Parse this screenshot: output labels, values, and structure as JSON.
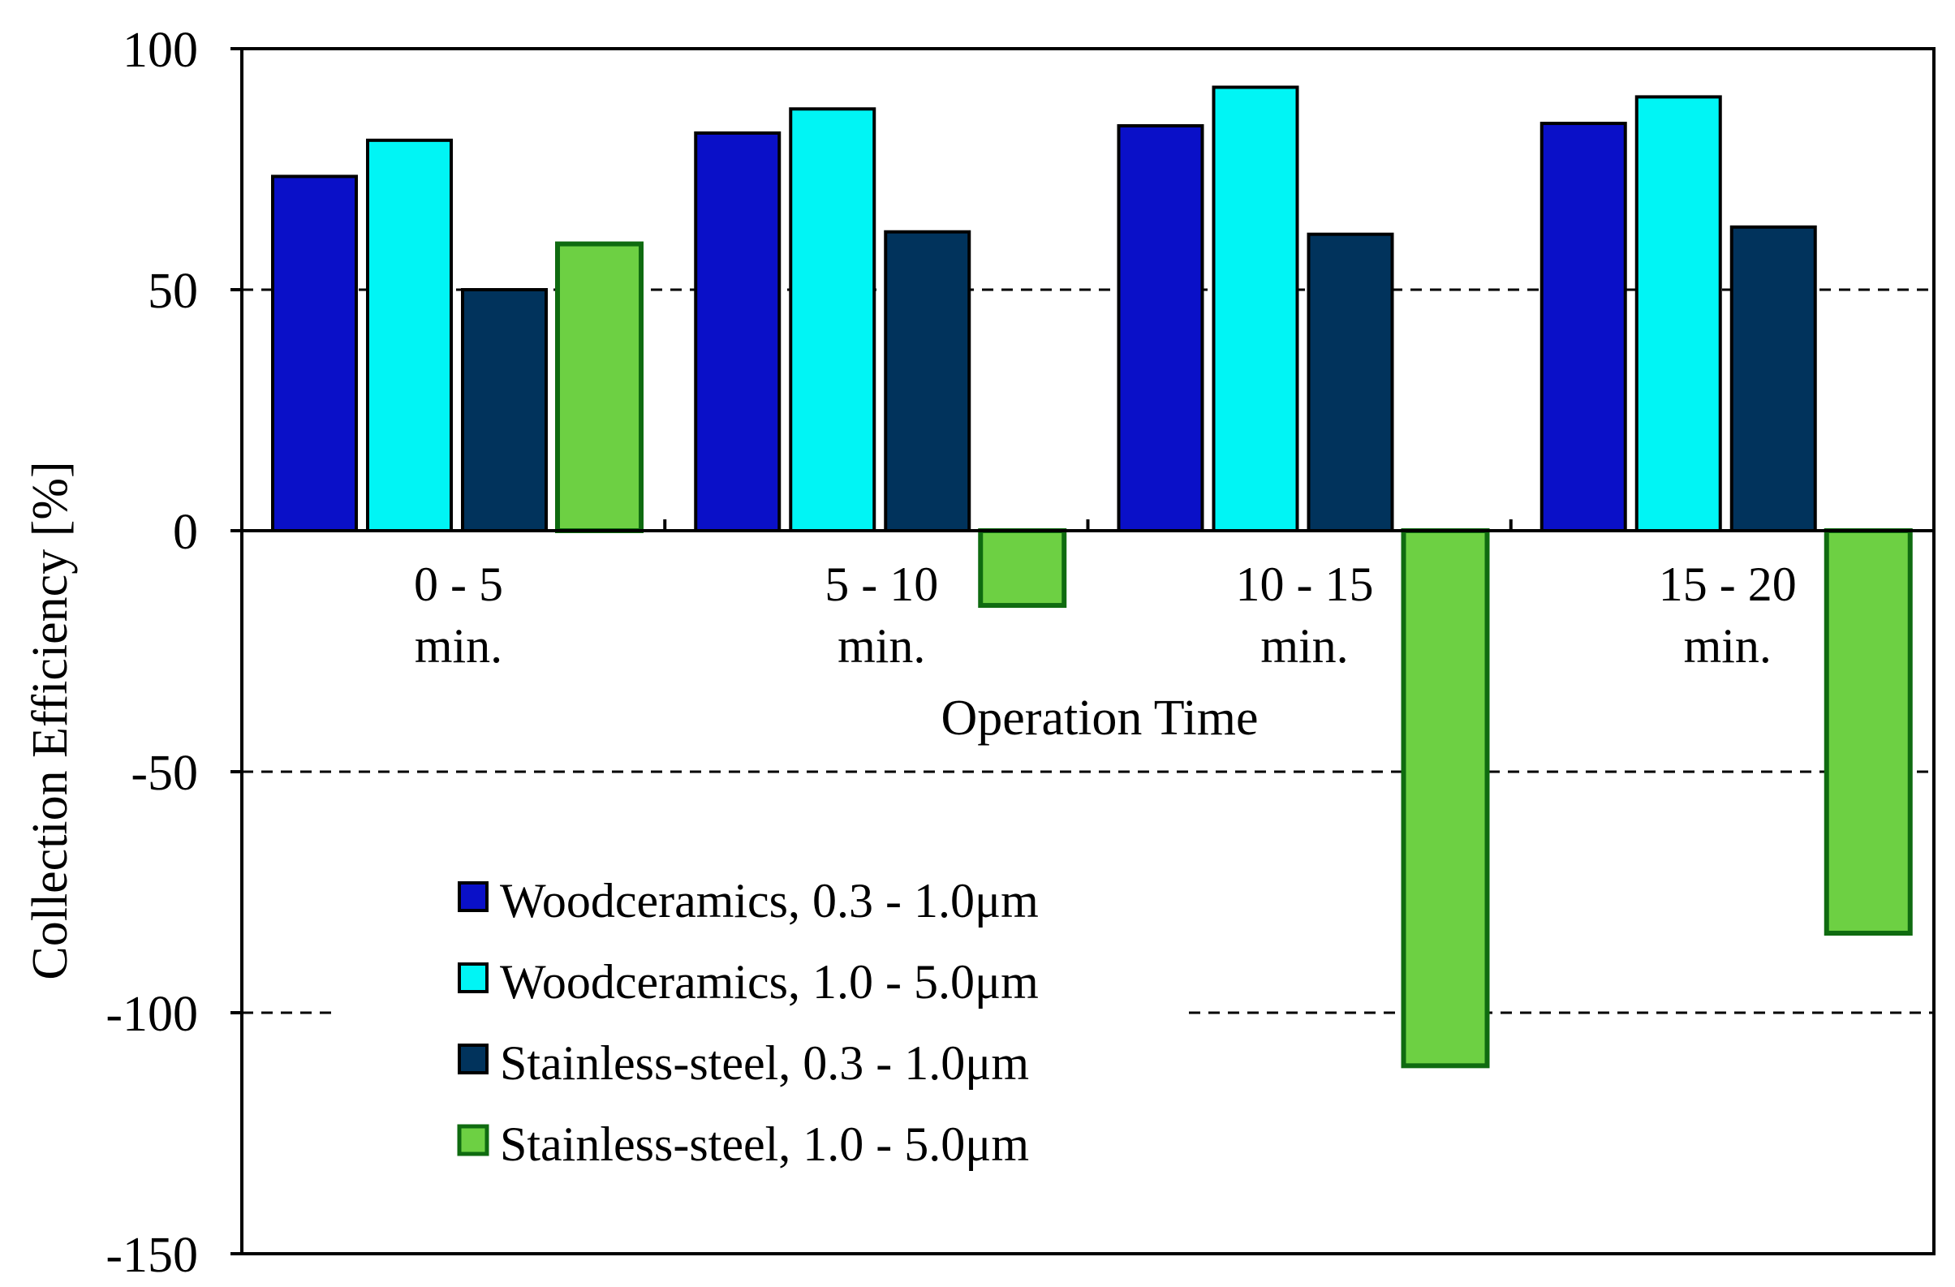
{
  "chart_data": {
    "type": "bar",
    "title": "",
    "xlabel": "Operation Time",
    "ylabel": "Collection  Efficiency    [%]",
    "ylim": [
      -150,
      100
    ],
    "yticks": [
      100,
      50,
      0,
      -50,
      -100,
      -150
    ],
    "ytick_labels": [
      "100",
      "50",
      "0",
      "-50",
      "-100",
      "-150"
    ],
    "gridlines": [
      50,
      -50,
      -100
    ],
    "grid_style": "dashed",
    "legend_position": "lower-left",
    "categories": [
      [
        "0 - 5",
        "min."
      ],
      [
        "5 - 10",
        "min."
      ],
      [
        "10 - 15",
        "min."
      ],
      [
        "15 - 20",
        "min."
      ]
    ],
    "series": [
      {
        "name": "Woodceramics, 0.3 - 1.0μm",
        "color": "#0a10c8",
        "border": "#000000",
        "values": [
          73.5,
          82.5,
          84,
          84.5
        ]
      },
      {
        "name": "Woodceramics, 1.0 - 5.0μm",
        "color": "#00f5f5",
        "border": "#000000",
        "values": [
          81,
          87.5,
          92,
          90
        ]
      },
      {
        "name": "Stainless-steel, 0.3 - 1.0μm",
        "color": "#01335c",
        "border": "#000000",
        "values": [
          50,
          62,
          61.5,
          63
        ]
      },
      {
        "name": "Stainless-steel, 1.0 - 5.0μm",
        "color": "#6dd043",
        "border": "#0f6b10",
        "values": [
          59.5,
          -15.5,
          -111,
          -83.5
        ]
      }
    ]
  }
}
